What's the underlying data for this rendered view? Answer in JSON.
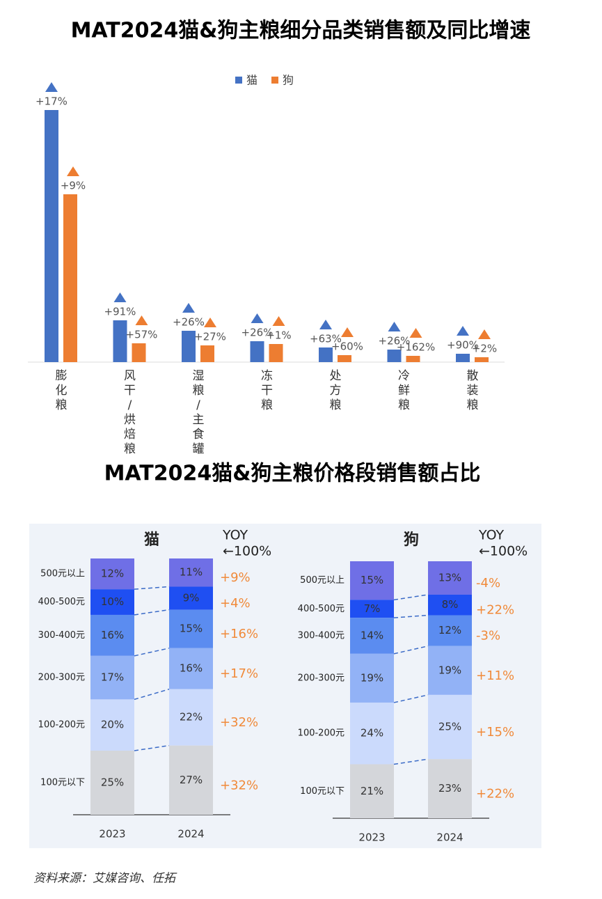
{
  "chart_data": [
    {
      "type": "bar",
      "title": "MAT2024猫&狗主粮细分品类销售额及同比增速",
      "categories": [
        "膨化粮",
        "风干/烘焙粮",
        "湿粮/主食罐",
        "冻干粮",
        "处方粮",
        "冷鲜粮",
        "散装粮"
      ],
      "series": [
        {
          "name": "猫",
          "color": "#4472c4",
          "values": [
            362,
            60,
            45,
            30,
            21,
            18,
            12
          ],
          "growth": [
            {
              "value": 17,
              "label": "+17%"
            },
            {
              "value": 91,
              "label": "+91%"
            },
            {
              "value": 26,
              "label": "+26%"
            },
            {
              "value": 26,
              "label": "+26%"
            },
            {
              "value": 63,
              "label": "+63%"
            },
            {
              "value": 26,
              "label": "+26%"
            },
            {
              "value": 90,
              "label": "+90%"
            }
          ]
        },
        {
          "name": "狗",
          "color": "#ed7d31",
          "values": [
            241,
            27,
            24,
            26,
            10,
            9,
            7
          ],
          "growth": [
            {
              "value": 9,
              "label": "+9%"
            },
            {
              "value": 57,
              "label": "+57%"
            },
            {
              "value": 27,
              "label": "+27%"
            },
            {
              "value": 1,
              "label": "+1%"
            },
            {
              "value": 60,
              "label": "+60%"
            },
            {
              "value": 162,
              "label": "+162%"
            },
            {
              "value": 2,
              "label": "+2%"
            }
          ]
        }
      ]
    },
    {
      "type": "stacked_bar",
      "title": "MAT2024猫&狗主粮价格段销售额占比",
      "yoy_title": "YOY",
      "yoy_subtitle": "←100%",
      "panels": [
        {
          "title": "猫",
          "categories": [
            "2023",
            "2024"
          ],
          "series": [
            {
              "name": "500元以上",
              "color": "#6f6fe6",
              "values": [
                12,
                11
              ],
              "value_labels": [
                "12%",
                "11%"
              ],
              "yoy": {
                "value": 9,
                "label": "+9%"
              }
            },
            {
              "name": "400-500元",
              "color": "#1f4ff2",
              "values": [
                10,
                9
              ],
              "value_labels": [
                "10%",
                "9%"
              ],
              "yoy": {
                "value": 4,
                "label": "+4%"
              }
            },
            {
              "name": "300-400元",
              "color": "#5b8cf0",
              "values": [
                16,
                15
              ],
              "value_labels": [
                "16%",
                "15%"
              ],
              "yoy": {
                "value": 16,
                "label": "+16%"
              }
            },
            {
              "name": "200-300元",
              "color": "#92b2f6",
              "values": [
                17,
                16
              ],
              "value_labels": [
                "17%",
                "16%"
              ],
              "yoy": {
                "value": 17,
                "label": "+17%"
              }
            },
            {
              "name": "100-200元",
              "color": "#cbdafc",
              "values": [
                20,
                22
              ],
              "value_labels": [
                "20%",
                "22%"
              ],
              "yoy": {
                "value": 32,
                "label": "+32%"
              }
            },
            {
              "name": "100元以下",
              "color": "#d4d6da",
              "values": [
                25,
                27
              ],
              "value_labels": [
                "25%",
                "27%"
              ],
              "yoy": {
                "value": 32,
                "label": "+32%"
              }
            }
          ]
        },
        {
          "title": "狗",
          "categories": [
            "2023",
            "2024"
          ],
          "series": [
            {
              "name": "500元以上",
              "color": "#6f6fe6",
              "values": [
                15,
                13
              ],
              "value_labels": [
                "15%",
                "13%"
              ],
              "yoy": {
                "value": -4,
                "label": "-4%"
              }
            },
            {
              "name": "400-500元",
              "color": "#1f4ff2",
              "values": [
                7,
                8
              ],
              "value_labels": [
                "7%",
                "8%"
              ],
              "yoy": {
                "value": 22,
                "label": "+22%"
              }
            },
            {
              "name": "300-400元",
              "color": "#5b8cf0",
              "values": [
                14,
                12
              ],
              "value_labels": [
                "14%",
                "12%"
              ],
              "yoy": {
                "value": -3,
                "label": "-3%"
              }
            },
            {
              "name": "200-300元",
              "color": "#92b2f6",
              "values": [
                19,
                19
              ],
              "value_labels": [
                "19%",
                "19%"
              ],
              "yoy": {
                "value": 11,
                "label": "+11%"
              }
            },
            {
              "name": "100-200元",
              "color": "#cbdafc",
              "values": [
                24,
                25
              ],
              "value_labels": [
                "24%",
                "25%"
              ],
              "yoy": {
                "value": 15,
                "label": "+15%"
              }
            },
            {
              "name": "100元以下",
              "color": "#d4d6da",
              "values": [
                21,
                23
              ],
              "value_labels": [
                "21%",
                "23%"
              ],
              "yoy": {
                "value": 22,
                "label": "+22%"
              }
            }
          ]
        }
      ]
    }
  ],
  "source": "资料来源：艾媒咨询、任拓"
}
